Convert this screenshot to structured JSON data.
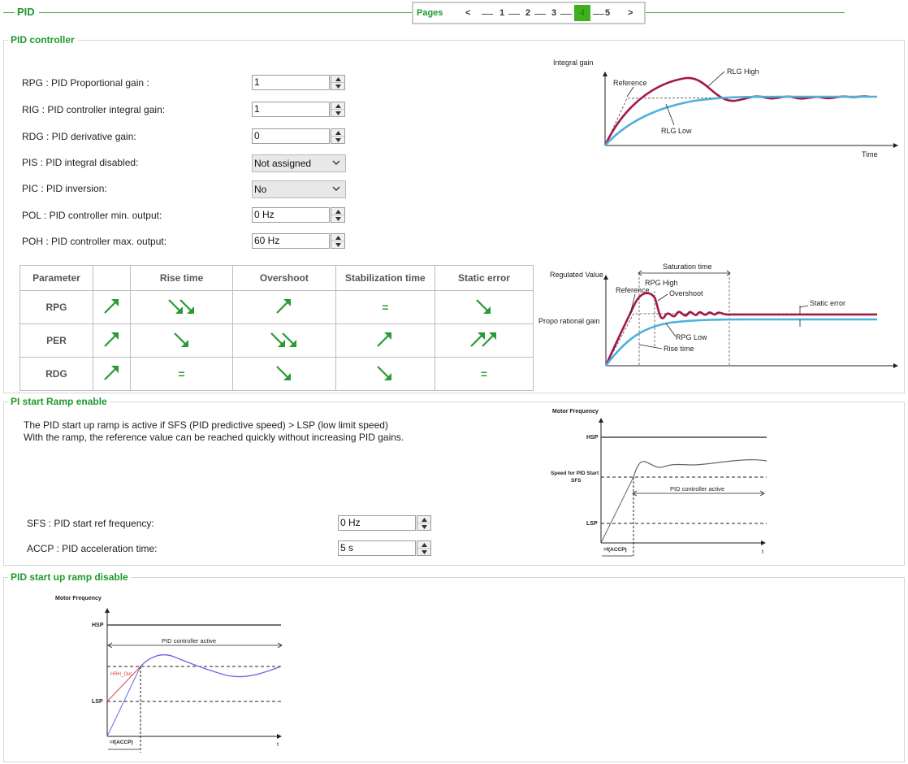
{
  "header": {
    "title": "PID"
  },
  "pager": {
    "label": "Pages",
    "prev": "<",
    "next": ">",
    "pages": [
      "1",
      "2",
      "3",
      "4",
      "5"
    ],
    "current": "4"
  },
  "pid_controller": {
    "legend": "PID controller",
    "rpg": {
      "label": "RPG : PID Proportional gain :",
      "value": "1"
    },
    "rig": {
      "label": "RIG : PID controller integral gain:",
      "value": "1"
    },
    "rdg": {
      "label": "RDG : PID derivative gain:",
      "value": "0"
    },
    "pis": {
      "label": "PIS : PID integral disabled:",
      "value": "Not assigned"
    },
    "pic": {
      "label": "PIC : PID inversion:",
      "value": "No"
    },
    "pol": {
      "label": "POL : PID controller min. output:",
      "value": "0 Hz"
    },
    "poh": {
      "label": "POH : PID controller max. output:",
      "value": "60 Hz"
    },
    "table": {
      "headers": [
        "Parameter",
        "",
        "Rise time",
        "Overshoot",
        "Stabilization time",
        "Static error"
      ],
      "rows": [
        {
          "name": "RPG",
          "cells": [
            "up",
            "down2",
            "up",
            "=",
            "down"
          ]
        },
        {
          "name": "PER",
          "cells": [
            "up",
            "down",
            "down2",
            "up",
            "up2"
          ]
        },
        {
          "name": "RDG",
          "cells": [
            "up",
            "=",
            "down",
            "down",
            "="
          ]
        }
      ]
    },
    "chart_integral": {
      "title": "Integral gain",
      "time": "Time",
      "reference": "Reference",
      "high": "RLG High",
      "low": "RLG Low"
    },
    "chart_regulated": {
      "regulated": "Regulated Value",
      "propo": "Propo rational gain",
      "saturation": "Saturation time",
      "reference": "Reference",
      "high": "RPG High",
      "overshoot": "Overshoot",
      "static_error": "Static error",
      "low": "RPG Low",
      "rise": "Rise time"
    }
  },
  "pi_start_ramp": {
    "legend": "PI start Ramp enable",
    "desc_line1": "The PID start up ramp is active if SFS (PID predictive speed) > LSP (low limit speed)",
    "desc_line2": "With the ramp, the reference value can be reached quickly without increasing PID gains.",
    "sfs": {
      "label": "SFS : PID start ref frequency:",
      "value": "0 Hz"
    },
    "accp": {
      "label": "ACCP : PID acceleration time:",
      "value": "5 s"
    },
    "chart": {
      "motor": "Motor Frequency",
      "hsp": "HSP",
      "sfs1": "Speed for PID Start",
      "sfs2": "SFS",
      "active": "PID controller active",
      "lsp": "LSP",
      "accp": "=f(ACCP)",
      "t": "t"
    }
  },
  "pid_ramp_disable": {
    "legend": "PID start up ramp disable",
    "chart": {
      "motor": "Motor Frequency",
      "hsp": "HSP",
      "active": "PID controller active",
      "hrh": "HRH_Out",
      "lsp": "LSP",
      "accp": "=f(ACCP)",
      "t": "t"
    }
  },
  "colors": {
    "accent": "#1e9a2c",
    "high": "#a3174a",
    "low": "#4fb0dc"
  }
}
